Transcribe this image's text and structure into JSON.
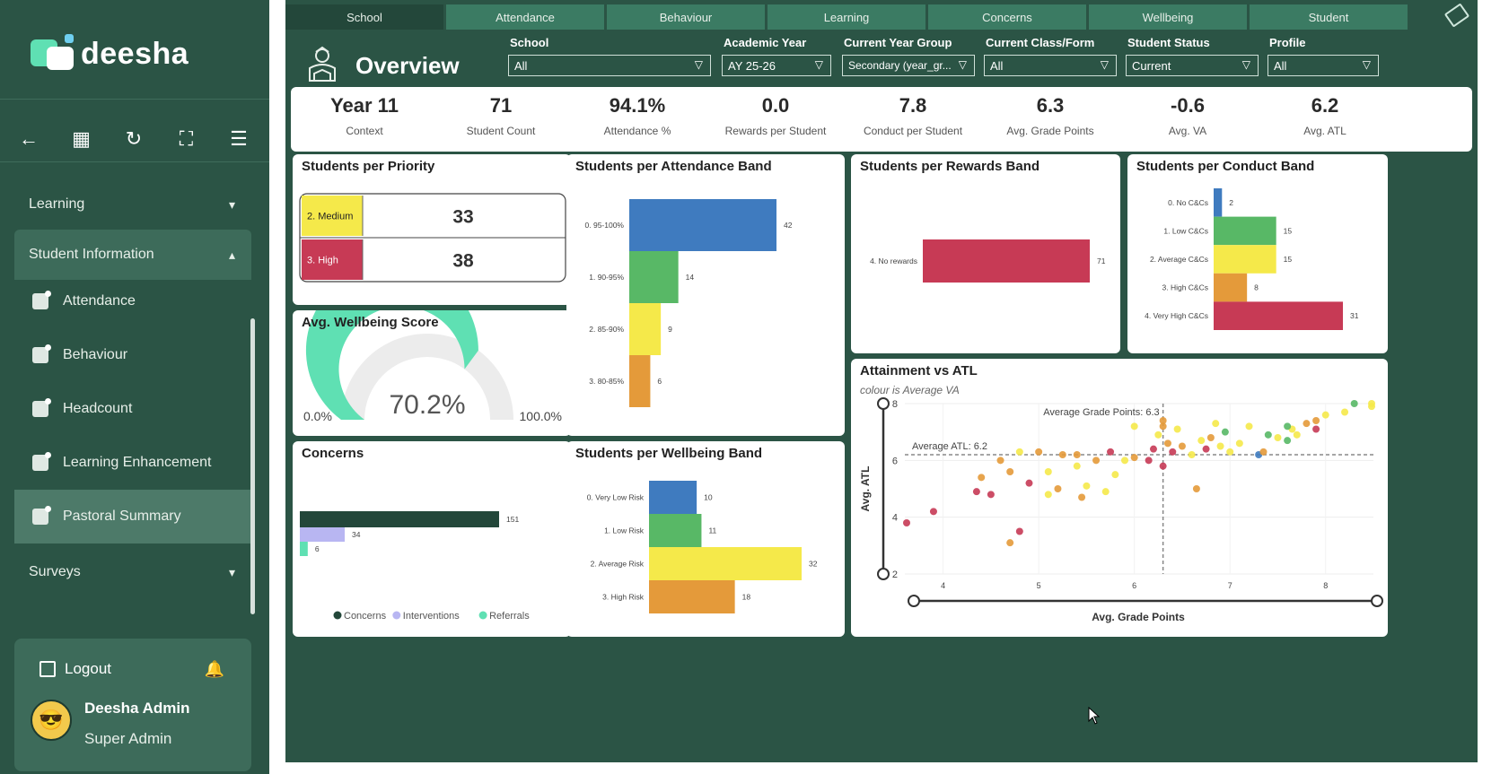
{
  "sidebar": {
    "logo": "deesha",
    "nav": {
      "learning": "Learning",
      "student_information": "Student Information",
      "items": [
        "Attendance",
        "Behaviour",
        "Headcount",
        "Learning Enhancement",
        "Pastoral Summary"
      ],
      "surveys": "Surveys"
    },
    "logout": "Logout",
    "user": {
      "name": "Deesha Admin",
      "role": "Super Admin"
    }
  },
  "report": {
    "tabs": [
      "School",
      "Attendance",
      "Behaviour",
      "Learning",
      "Concerns",
      "Wellbeing",
      "Student"
    ],
    "title": "Overview",
    "filters": [
      {
        "label": "School",
        "value": "All"
      },
      {
        "label": "Academic Year",
        "value": "AY 25-26"
      },
      {
        "label": "Current Year Group",
        "value": "Secondary (year_gr..."
      },
      {
        "label": "Current Class/Form",
        "value": "All"
      },
      {
        "label": "Student Status",
        "value": "Current"
      },
      {
        "label": "Profile",
        "value": "All"
      }
    ],
    "kpis": [
      {
        "value": "Year 11",
        "label": "Context"
      },
      {
        "value": "71",
        "label": "Student Count"
      },
      {
        "value": "94.1%",
        "label": "Attendance %"
      },
      {
        "value": "0.0",
        "label": "Rewards per Student"
      },
      {
        "value": "7.8",
        "label": "Conduct per Student"
      },
      {
        "value": "6.3",
        "label": "Avg. Grade Points"
      },
      {
        "value": "-0.6",
        "label": "Avg. VA"
      },
      {
        "value": "6.2",
        "label": "Avg. ATL"
      }
    ]
  },
  "chart_data": [
    {
      "type": "table",
      "title": "Students per Priority",
      "rows": [
        {
          "label": "2. Medium",
          "value": 33,
          "color": "#f5e94a"
        },
        {
          "label": "3. High",
          "value": 38,
          "color": "#c73a55"
        }
      ]
    },
    {
      "type": "gauge",
      "title": "Avg. Wellbeing Score",
      "value": 70.2,
      "display": "70.2%",
      "min_label": "0.0%",
      "max_label": "100.0%",
      "color": "#5fe0b3"
    },
    {
      "type": "bar",
      "title": "Concerns",
      "categories": [
        "Concerns",
        "Interventions",
        "Referrals"
      ],
      "values": [
        151,
        34,
        6
      ],
      "colors": [
        "#23473a",
        "#b8b6f2",
        "#5fe0b3"
      ],
      "legend": "bottom"
    },
    {
      "type": "bar",
      "title": "Students per Attendance Band",
      "categories": [
        "0. 95-100%",
        "1. 90-95%",
        "2. 85-90%",
        "3. 80-85%"
      ],
      "values": [
        42,
        14,
        9,
        6
      ],
      "colors": [
        "#3f7bbf",
        "#58b866",
        "#f5e94a",
        "#e49a3a"
      ]
    },
    {
      "type": "bar",
      "title": "Students per Wellbeing Band",
      "categories": [
        "0. Very Low Risk",
        "1. Low Risk",
        "2. Average Risk",
        "3. High Risk"
      ],
      "values": [
        10,
        11,
        32,
        18
      ],
      "colors": [
        "#3f7bbf",
        "#58b866",
        "#f5e94a",
        "#e49a3a"
      ]
    },
    {
      "type": "bar",
      "title": "Students per Rewards Band",
      "categories": [
        "4. No rewards"
      ],
      "values": [
        71
      ],
      "colors": [
        "#c73a55"
      ]
    },
    {
      "type": "bar",
      "title": "Students per Conduct Band",
      "categories": [
        "0. No C&Cs",
        "1. Low C&Cs",
        "2. Average C&Cs",
        "3. High C&Cs",
        "4. Very High C&Cs"
      ],
      "values": [
        2,
        15,
        15,
        8,
        31
      ],
      "colors": [
        "#3f7bbf",
        "#58b866",
        "#f5e94a",
        "#e49a3a",
        "#c73a55"
      ]
    },
    {
      "type": "scatter",
      "title": "Attainment vs ATL",
      "subtitle": "colour is Average VA",
      "xlabel": "Avg. Grade Points",
      "ylabel": "Avg. ATL",
      "xlim": [
        3.6,
        8.5
      ],
      "ylim": [
        2,
        8
      ],
      "xticks": [
        4,
        5,
        6,
        7,
        8
      ],
      "yticks": [
        2,
        4,
        6,
        8
      ],
      "ref_x": {
        "value": 6.3,
        "label": "Average Grade Points: 6.3"
      },
      "ref_y": {
        "value": 6.2,
        "label": "Average ATL: 6.2"
      },
      "points": [
        [
          3.5,
          3.8,
          "r"
        ],
        [
          3.9,
          4.2,
          "r"
        ],
        [
          4.4,
          5.4,
          "o"
        ],
        [
          4.35,
          4.9,
          "r"
        ],
        [
          4.5,
          4.8,
          "r"
        ],
        [
          4.6,
          6.0,
          "o"
        ],
        [
          4.7,
          5.6,
          "o"
        ],
        [
          4.8,
          6.3,
          "y"
        ],
        [
          4.7,
          3.1,
          "o"
        ],
        [
          4.8,
          3.5,
          "r"
        ],
        [
          4.9,
          5.2,
          "r"
        ],
        [
          5.0,
          6.3,
          "o"
        ],
        [
          5.1,
          5.6,
          "y"
        ],
        [
          5.1,
          4.8,
          "y"
        ],
        [
          5.2,
          5.0,
          "o"
        ],
        [
          5.25,
          6.2,
          "o"
        ],
        [
          5.4,
          6.2,
          "o"
        ],
        [
          5.4,
          5.8,
          "y"
        ],
        [
          5.5,
          5.1,
          "y"
        ],
        [
          5.45,
          4.7,
          "o"
        ],
        [
          5.6,
          6.0,
          "o"
        ],
        [
          5.7,
          4.9,
          "y"
        ],
        [
          5.75,
          6.3,
          "r"
        ],
        [
          5.8,
          5.5,
          "y"
        ],
        [
          5.9,
          6.0,
          "y"
        ],
        [
          6.0,
          6.1,
          "o"
        ],
        [
          6.0,
          7.2,
          "y"
        ],
        [
          6.2,
          6.4,
          "r"
        ],
        [
          6.15,
          6.0,
          "r"
        ],
        [
          6.25,
          6.9,
          "y"
        ],
        [
          6.3,
          7.2,
          "o"
        ],
        [
          6.35,
          6.6,
          "o"
        ],
        [
          6.3,
          5.8,
          "r"
        ],
        [
          6.4,
          6.3,
          "r"
        ],
        [
          6.45,
          7.1,
          "y"
        ],
        [
          6.5,
          6.5,
          "o"
        ],
        [
          6.6,
          6.2,
          "y"
        ],
        [
          6.7,
          6.7,
          "y"
        ],
        [
          6.75,
          6.4,
          "r"
        ],
        [
          6.8,
          6.8,
          "o"
        ],
        [
          6.9,
          6.5,
          "y"
        ],
        [
          6.95,
          7.0,
          "g"
        ],
        [
          7.0,
          6.3,
          "y"
        ],
        [
          6.65,
          5.0,
          "o"
        ],
        [
          7.1,
          6.6,
          "y"
        ],
        [
          7.2,
          7.2,
          "y"
        ],
        [
          7.3,
          6.2,
          "b"
        ],
        [
          7.35,
          6.3,
          "o"
        ],
        [
          7.4,
          6.9,
          "g"
        ],
        [
          7.5,
          6.8,
          "y"
        ],
        [
          7.6,
          6.7,
          "g"
        ],
        [
          7.65,
          7.1,
          "y"
        ],
        [
          7.7,
          6.9,
          "y"
        ],
        [
          7.8,
          7.3,
          "o"
        ],
        [
          7.9,
          7.1,
          "r"
        ],
        [
          8.0,
          7.6,
          "y"
        ],
        [
          8.2,
          7.7,
          "y"
        ],
        [
          8.3,
          8.0,
          "g"
        ],
        [
          8.5,
          8.0,
          "y"
        ],
        [
          8.6,
          7.9,
          "y"
        ],
        [
          7.9,
          7.4,
          "o"
        ],
        [
          7.6,
          7.2,
          "g"
        ],
        [
          6.85,
          7.3,
          "y"
        ],
        [
          6.3,
          7.4,
          "o"
        ]
      ],
      "palette": {
        "r": "#c73a55",
        "o": "#e49a3a",
        "y": "#f5e94a",
        "g": "#58b866",
        "b": "#3f7bbf"
      }
    }
  ]
}
